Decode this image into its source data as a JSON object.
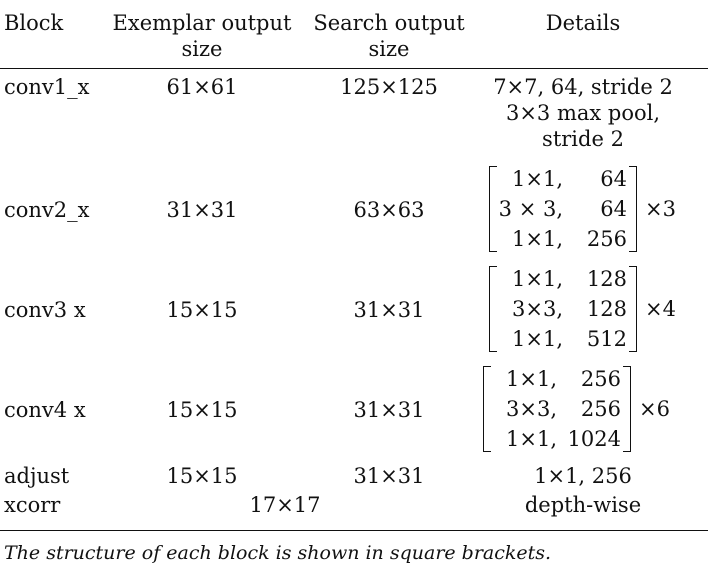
{
  "table": {
    "headers": {
      "block": "Block",
      "exemplar_line1": "Exemplar output",
      "exemplar_line2": "size",
      "search_line1": "Search output",
      "search_line2": "size",
      "details": "Details"
    },
    "rows": [
      {
        "block": "conv1_x",
        "exemplar": "61×61",
        "search": "125×125",
        "details": [
          "7×7, 64, stride 2",
          "3×3 max pool,",
          "stride 2"
        ]
      },
      {
        "block": "conv2_x",
        "exemplar": "31×31",
        "search": "63×63",
        "matrix": [
          [
            "1×1,",
            "64"
          ],
          [
            "3 × 3,",
            "64"
          ],
          [
            "1×1,",
            "256"
          ]
        ],
        "multiplier": "×3"
      },
      {
        "block": "conv3 x",
        "exemplar": "15×15",
        "search": "31×31",
        "matrix": [
          [
            "1×1,",
            "128"
          ],
          [
            "3×3,",
            "128"
          ],
          [
            "1×1,",
            "512"
          ]
        ],
        "multiplier": "×4"
      },
      {
        "block": "conv4 x",
        "exemplar": "15×15",
        "search": "31×31",
        "matrix": [
          [
            "1×1,",
            "256"
          ],
          [
            "3×3,",
            "256"
          ],
          [
            "1×1,",
            "1024"
          ]
        ],
        "multiplier": "×6"
      },
      {
        "block": "adjust",
        "exemplar": "15×15",
        "search": "31×31",
        "details": "1×1, 256"
      },
      {
        "block": "xcorr",
        "merged": "17×17",
        "details": "depth-wise"
      }
    ]
  },
  "caption": "The structure of each block is shown in square brackets."
}
